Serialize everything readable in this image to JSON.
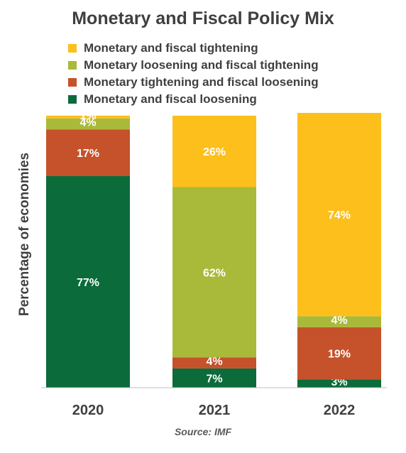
{
  "chart_data": {
    "type": "bar",
    "stacked": true,
    "title": "Monetary and Fiscal Policy Mix",
    "ylabel": "Percentage of economies",
    "xlabel": "",
    "ylim": [
      0,
      100
    ],
    "grid": false,
    "legend_position": "top",
    "categories": [
      "2020",
      "2021",
      "2022"
    ],
    "series": [
      {
        "name": "Monetary and fiscal loosening",
        "color": "#0b6b3a",
        "values": [
          77,
          7,
          3
        ],
        "labels": [
          "77%",
          "7%",
          "3%"
        ]
      },
      {
        "name": "Monetary tightening and fiscal loosening",
        "color": "#c5522a",
        "values": [
          17,
          4,
          19
        ],
        "labels": [
          "17%",
          "4%",
          "19%"
        ]
      },
      {
        "name": "Monetary loosening and fiscal tightening",
        "color": "#a9b93a",
        "values": [
          4,
          62,
          4
        ],
        "labels": [
          "4%",
          "62%",
          "4%"
        ]
      },
      {
        "name": "Monetary and fiscal tightening",
        "color": "#fdbf1b",
        "values": [
          1,
          26,
          74
        ],
        "labels": [
          "1%",
          "26%",
          "74%"
        ]
      }
    ],
    "legend_order": [
      3,
      2,
      1,
      0
    ]
  },
  "source": "Source: IMF"
}
